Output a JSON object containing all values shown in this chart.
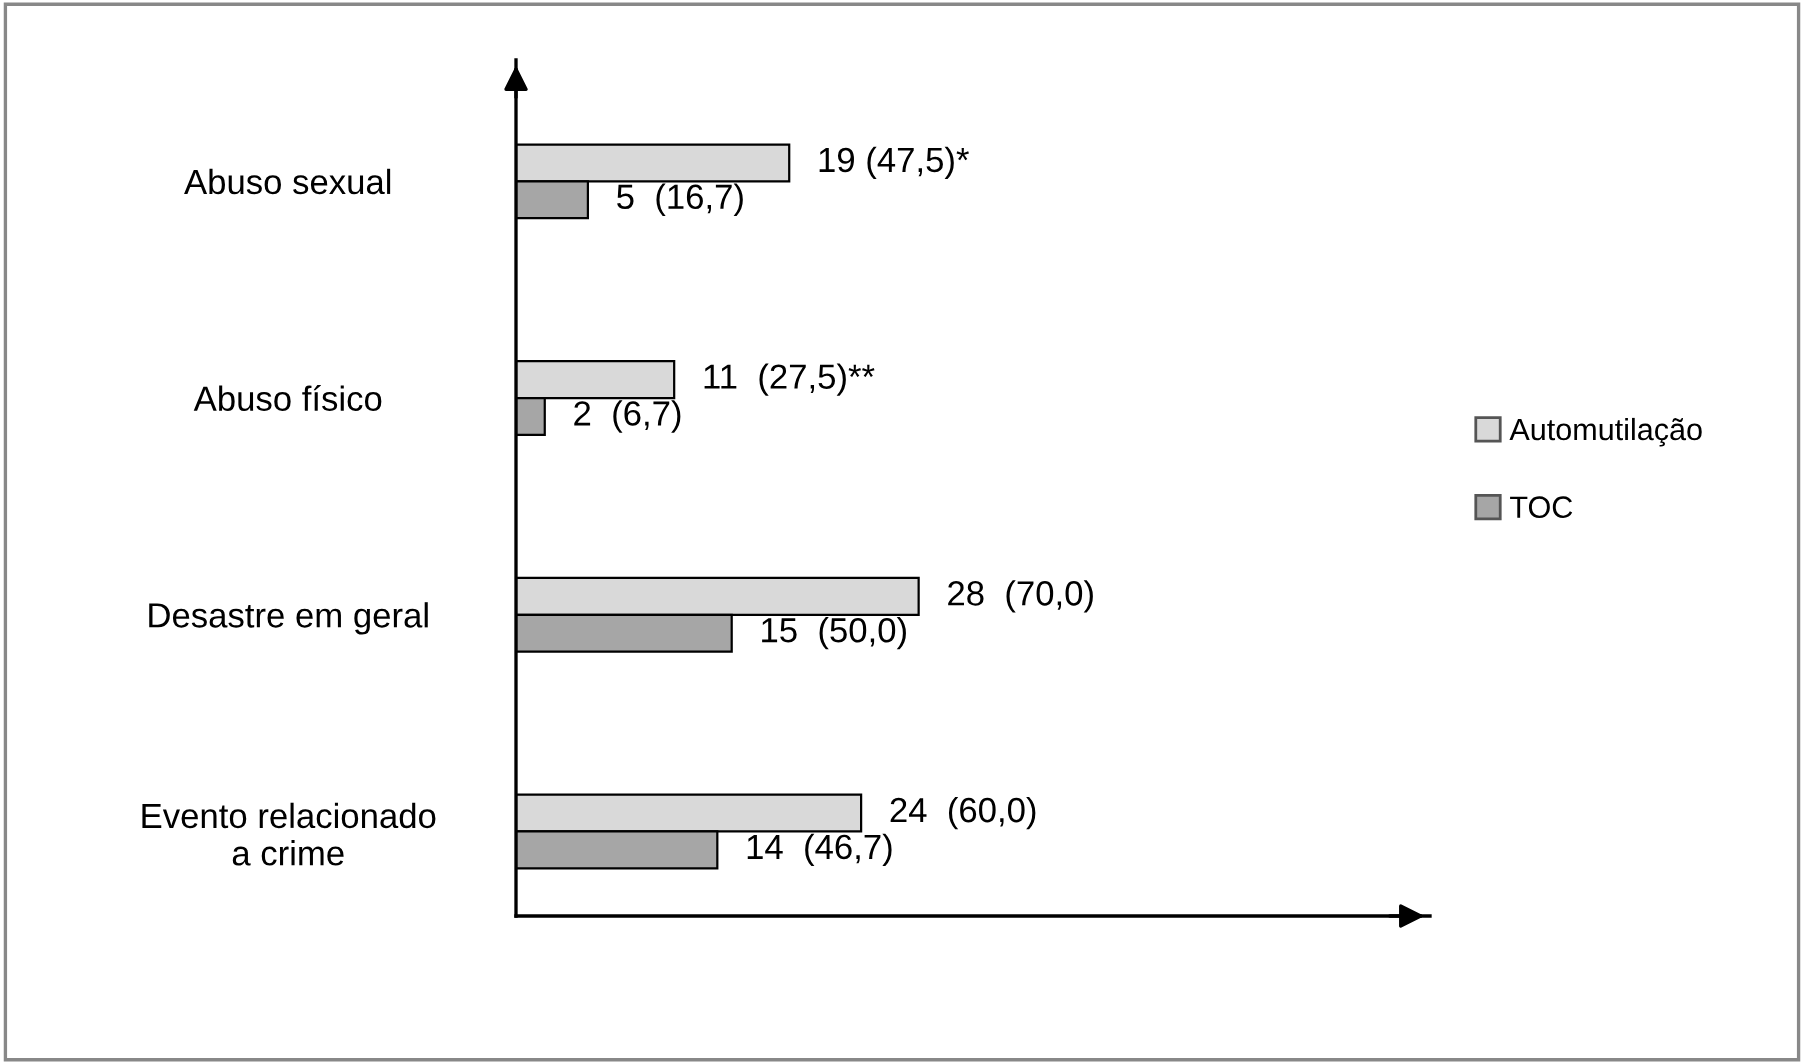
{
  "chart_data": {
    "type": "bar",
    "orientation": "horizontal",
    "categories": [
      "Abuso sexual",
      "Abuso físico",
      "Desastre em geral",
      "Evento relacionado\na crime"
    ],
    "series": [
      {
        "name": "Automutilação",
        "color": "#d9d9d9",
        "values": [
          19,
          11,
          28,
          24
        ],
        "value_labels": [
          "19 (47,5)*",
          "11  (27,5)**",
          "28  (70,0)",
          "24  (60,0)"
        ]
      },
      {
        "name": "TOC",
        "color": "#a6a6a6",
        "values": [
          5,
          2,
          15,
          14
        ],
        "value_labels": [
          "5  (16,7)",
          "2  (6,7)",
          "15  (50,0)",
          "14  (46,7)"
        ]
      }
    ],
    "legend": "right",
    "grid": false
  }
}
